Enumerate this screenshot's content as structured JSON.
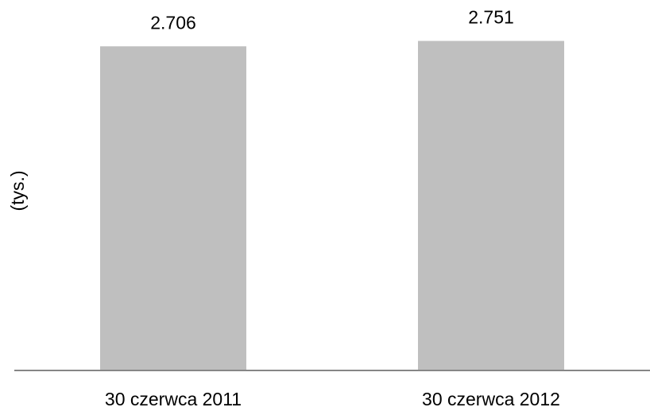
{
  "chart_data": {
    "type": "bar",
    "title": "",
    "xlabel": "",
    "ylabel": "(tys.)",
    "categories": [
      "30 czerwca 2011",
      "30 czerwca 2012"
    ],
    "values": [
      2706,
      2751
    ],
    "value_labels": [
      "2.706",
      "2.751"
    ],
    "ylim": [
      0,
      2960
    ],
    "grid": false,
    "legend": "none",
    "colors": {
      "bar": "#BFBFBF",
      "axis": "#868686",
      "text": "#000000"
    }
  }
}
